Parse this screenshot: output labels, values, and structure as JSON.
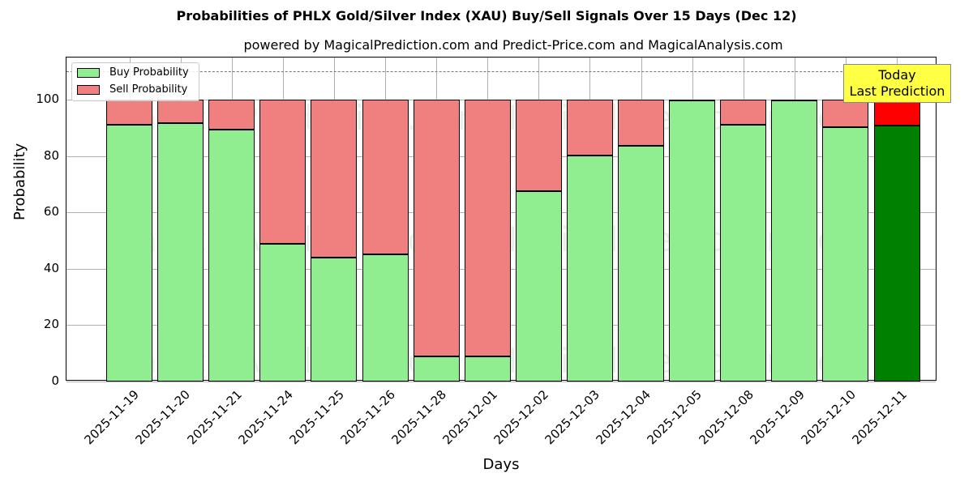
{
  "chart_data": {
    "type": "bar",
    "stacked": true,
    "title": "Probabilities of PHLX Gold/Silver Index (XAU) Buy/Sell Signals Over 15 Days (Dec 12)",
    "subtitle": "powered by MagicalPrediction.com and Predict-Price.com and MagicalAnalysis.com",
    "xlabel": "Days",
    "ylabel": "Probability",
    "ylim": [
      0,
      115
    ],
    "yticks": [
      0,
      20,
      40,
      60,
      80,
      100
    ],
    "reference_line": 110,
    "grid": true,
    "legend_position": "upper left",
    "categories": [
      "2025-11-19",
      "2025-11-20",
      "2025-11-21",
      "2025-11-24",
      "2025-11-25",
      "2025-11-26",
      "2025-11-28",
      "2025-12-01",
      "2025-12-02",
      "2025-12-03",
      "2025-12-04",
      "2025-12-05",
      "2025-12-08",
      "2025-12-09",
      "2025-12-10",
      "2025-12-11"
    ],
    "series": [
      {
        "name": "Buy Probability",
        "color": "#90ee90",
        "values": [
          91.0,
          91.8,
          89.4,
          49.0,
          44.0,
          45.0,
          8.9,
          8.9,
          67.7,
          80.2,
          83.8,
          99.7,
          91.0,
          99.7,
          90.3,
          90.8
        ]
      },
      {
        "name": "Sell Probability",
        "color": "#f08080",
        "values": [
          9.0,
          8.2,
          10.6,
          51.0,
          56.0,
          55.0,
          91.1,
          91.1,
          32.3,
          19.8,
          16.2,
          0.3,
          9.0,
          0.3,
          9.7,
          9.2
        ]
      }
    ],
    "highlight": {
      "index": 15,
      "buy_color": "#008000",
      "sell_color": "#ff0000",
      "annotation": "Today\nLast Prediction"
    }
  },
  "annotation": {
    "line1": "Today",
    "line2": "Last Prediction"
  },
  "watermarks": [
    "MagicalAnalysis.com",
    "MagicalPrediction.com"
  ]
}
